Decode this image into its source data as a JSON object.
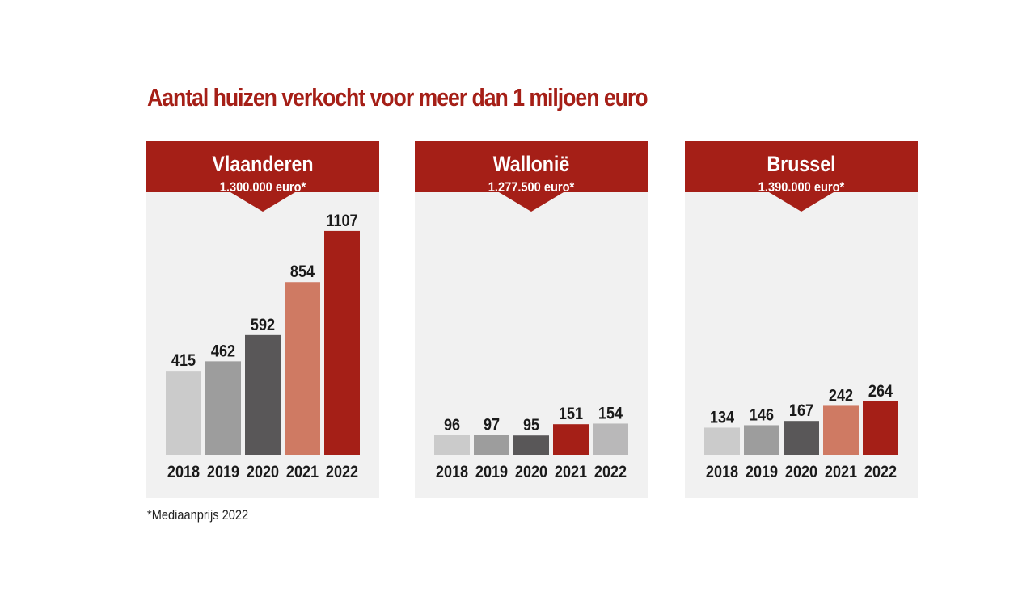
{
  "title": "Aantal huizen verkocht voor meer dan 1 miljoen euro",
  "footnote": "*Mediaanprijs 2022",
  "colors": {
    "header": "#a51f17",
    "panel_bg": "#f1f1f1",
    "bar_2018": "#cbcbcb",
    "bar_2019": "#9d9d9d",
    "bar_2020": "#595758",
    "bar_salmon": "#cf7a63",
    "bar_red": "#a51f17",
    "bar_grey_light": "#b9b8b9"
  },
  "chart_data": [
    {
      "type": "bar",
      "title": "Vlaanderen",
      "subtitle": "1.300.000 euro*",
      "categories": [
        "2018",
        "2019",
        "2020",
        "2021",
        "2022"
      ],
      "values": [
        415,
        462,
        592,
        854,
        1107
      ],
      "bar_colors": [
        "#cbcbcb",
        "#9d9d9d",
        "#595758",
        "#cf7a63",
        "#a51f17"
      ]
    },
    {
      "type": "bar",
      "title": "Wallonië",
      "subtitle": "1.277.500 euro*",
      "categories": [
        "2018",
        "2019",
        "2020",
        "2021",
        "2022"
      ],
      "values": [
        96,
        97,
        95,
        151,
        154
      ],
      "bar_colors": [
        "#cbcbcb",
        "#9d9d9d",
        "#595758",
        "#a51f17",
        "#b9b8b9"
      ]
    },
    {
      "type": "bar",
      "title": "Brussel",
      "subtitle": "1.390.000 euro*",
      "categories": [
        "2018",
        "2019",
        "2020",
        "2021",
        "2022"
      ],
      "values": [
        134,
        146,
        167,
        242,
        264
      ],
      "bar_colors": [
        "#cbcbcb",
        "#9d9d9d",
        "#595758",
        "#cf7a63",
        "#a51f17"
      ]
    }
  ]
}
